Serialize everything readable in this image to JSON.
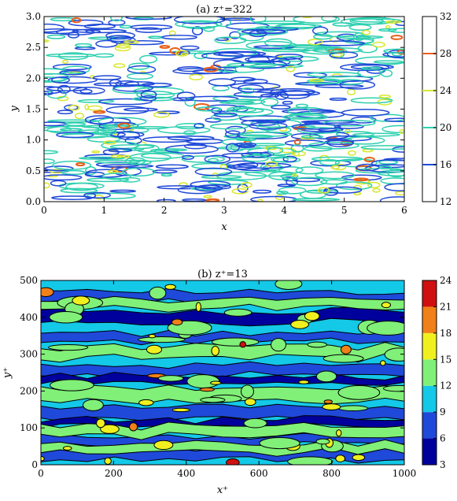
{
  "chart_data": [
    {
      "type": "heatmap",
      "style": "contour-lines",
      "title": "(a) z⁺=322",
      "xlabel": "x",
      "ylabel": "y",
      "xlim": [
        0,
        6
      ],
      "ylim": [
        0,
        3
      ],
      "x_ticks": [
        "0",
        "1",
        "2",
        "3",
        "4",
        "5",
        "6"
      ],
      "y_ticks": [
        "0.0",
        "0.5",
        "1.0",
        "1.5",
        "2.0",
        "2.5",
        "3.0"
      ],
      "colorbar": {
        "range": [
          12,
          32
        ],
        "ticks": [
          "12",
          "16",
          "20",
          "24",
          "28",
          "32"
        ],
        "levels": [
          {
            "value": 16,
            "color": "#1f49d8"
          },
          {
            "value": 20,
            "color": "#2fd0b0"
          },
          {
            "value": 24,
            "color": "#d8e830"
          },
          {
            "value": 28,
            "color": "#e8601a"
          }
        ]
      },
      "grid": false
    },
    {
      "type": "heatmap",
      "style": "filled-contours",
      "title": "(b) z⁺=13",
      "xlabel": "x⁺",
      "ylabel": "y⁺",
      "xlim": [
        0,
        1000
      ],
      "ylim": [
        0,
        500
      ],
      "x_ticks": [
        "0",
        "200",
        "400",
        "600",
        "800",
        "1000"
      ],
      "y_ticks": [
        "0",
        "100",
        "200",
        "300",
        "400",
        "500"
      ],
      "colorbar": {
        "range": [
          3,
          24
        ],
        "ticks": [
          "3",
          "6",
          "9",
          "12",
          "15",
          "18",
          "21",
          "24"
        ],
        "levels": [
          {
            "value": 3,
            "color": "#00009c"
          },
          {
            "value": 6,
            "color": "#1f49d8"
          },
          {
            "value": 9,
            "color": "#14c8e8"
          },
          {
            "value": 12,
            "color": "#80f078"
          },
          {
            "value": 15,
            "color": "#f0f020"
          },
          {
            "value": 18,
            "color": "#f08018"
          },
          {
            "value": 21,
            "color": "#d01010"
          }
        ]
      },
      "grid": false
    }
  ]
}
